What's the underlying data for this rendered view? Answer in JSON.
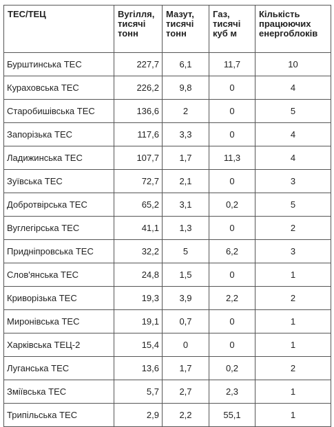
{
  "table": {
    "headers": [
      "ТЕС/ТЕЦ",
      "Вугілля, тисячі тонн",
      "Мазут, тисячі тонн",
      "Газ, тисячі куб м",
      "Кількість працюючих енергоблоків"
    ],
    "rows": [
      [
        "Бурштинська ТЕС",
        "227,7",
        "6,1",
        "11,7",
        "10"
      ],
      [
        "Кураховська ТЕС",
        "226,2",
        "9,8",
        "0",
        "4"
      ],
      [
        "Старобишівська ТЕС",
        "136,6",
        "2",
        "0",
        "5"
      ],
      [
        "Запорізька ТЕС",
        "117,6",
        "3,3",
        "0",
        "4"
      ],
      [
        "Ладижинська ТЕС",
        "107,7",
        "1,7",
        "11,3",
        "4"
      ],
      [
        "Зуївська ТЕС",
        "72,7",
        "2,1",
        "0",
        "3"
      ],
      [
        "Добротвірська ТЕС",
        "65,2",
        "3,1",
        "0,2",
        "5"
      ],
      [
        "Вуглегірська ТЕС",
        "41,1",
        "1,3",
        "0",
        "2"
      ],
      [
        "Придніпровська ТЕС",
        "32,2",
        "5",
        "6,2",
        "3"
      ],
      [
        "Слов'янська ТЕС",
        "24,8",
        "1,5",
        "0",
        "1"
      ],
      [
        "Криворізька ТЕС",
        "19,3",
        "3,9",
        "2,2",
        "2"
      ],
      [
        "Миронівська ТЕС",
        "19,1",
        "0,7",
        "0",
        "1"
      ],
      [
        "Харківська ТЕЦ-2",
        "15,4",
        "0",
        "0",
        "1"
      ],
      [
        "Луганська ТЕС",
        "13,6",
        "1,7",
        "0,2",
        "2"
      ],
      [
        "Зміївська ТЕС",
        "5,7",
        "2,7",
        "2,3",
        "1"
      ],
      [
        "Трипільська ТЕС",
        "2,9",
        "2,2",
        "55,1",
        "1"
      ]
    ]
  }
}
